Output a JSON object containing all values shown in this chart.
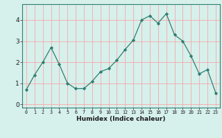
{
  "x": [
    0,
    1,
    2,
    3,
    4,
    5,
    6,
    7,
    8,
    9,
    10,
    11,
    12,
    13,
    14,
    15,
    16,
    17,
    18,
    19,
    20,
    21,
    22,
    23
  ],
  "y": [
    0.7,
    1.4,
    2.0,
    2.7,
    1.9,
    1.0,
    0.75,
    0.75,
    1.1,
    1.55,
    1.7,
    2.1,
    2.6,
    3.05,
    4.0,
    4.2,
    3.85,
    4.3,
    3.3,
    3.0,
    2.3,
    1.45,
    1.65,
    0.55
  ],
  "xlabel": "Humidex (Indice chaleur)",
  "ylim": [
    -0.15,
    4.75
  ],
  "xlim": [
    -0.5,
    23.5
  ],
  "yticks": [
    0,
    1,
    2,
    3,
    4
  ],
  "xticks": [
    0,
    1,
    2,
    3,
    4,
    5,
    6,
    7,
    8,
    9,
    10,
    11,
    12,
    13,
    14,
    15,
    16,
    17,
    18,
    19,
    20,
    21,
    22,
    23
  ],
  "line_color": "#2e7d6e",
  "marker_color": "#2e7d6e",
  "bg_color": "#d6f0ec",
  "grid_color": "#ff9999"
}
